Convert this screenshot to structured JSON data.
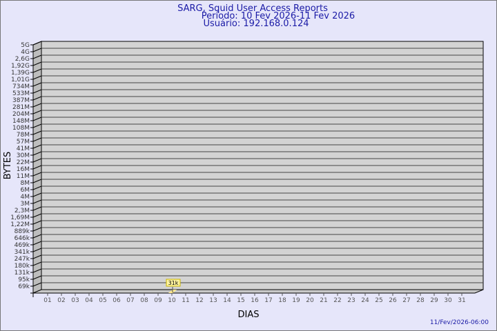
{
  "chart_data": {
    "type": "bar",
    "title": "SARG, Squid User Access Reports",
    "subtitle_period": "Período: 10 Fev 2026-11 Fev 2026",
    "subtitle_user": "Usuário: 192.168.0.124",
    "xlabel": "DIAS",
    "ylabel": "BYTES",
    "x_ticks": [
      "01",
      "02",
      "03",
      "04",
      "05",
      "06",
      "07",
      "08",
      "09",
      "10",
      "11",
      "12",
      "13",
      "14",
      "15",
      "16",
      "17",
      "18",
      "19",
      "20",
      "21",
      "22",
      "23",
      "24",
      "25",
      "26",
      "27",
      "28",
      "29",
      "30",
      "31"
    ],
    "y_ticks": [
      "5G",
      "4G",
      "2,6G",
      "1,92G",
      "1,39G",
      "1,01G",
      "734M",
      "533M",
      "387M",
      "281M",
      "204M",
      "148M",
      "108M",
      "78M",
      "57M",
      "41M",
      "30M",
      "22M",
      "16M",
      "11M",
      "8M",
      "6M",
      "4M",
      "3M",
      "2,3M",
      "1,69M",
      "1,22M",
      "889k",
      "646k",
      "469k",
      "341k",
      "247k",
      "180k",
      "131k",
      "95k",
      "69k"
    ],
    "y_scale": "log",
    "grid": true,
    "bars": [
      {
        "day": "10",
        "value": 31000,
        "label": "31k"
      }
    ],
    "colors": {
      "background": "#e6e6fa",
      "plot": "#d3d3d3",
      "bar": "#ffe88a",
      "title": "#1a1aa6"
    }
  },
  "footer": {
    "timestamp": "11/Fev/2026-06:00"
  }
}
